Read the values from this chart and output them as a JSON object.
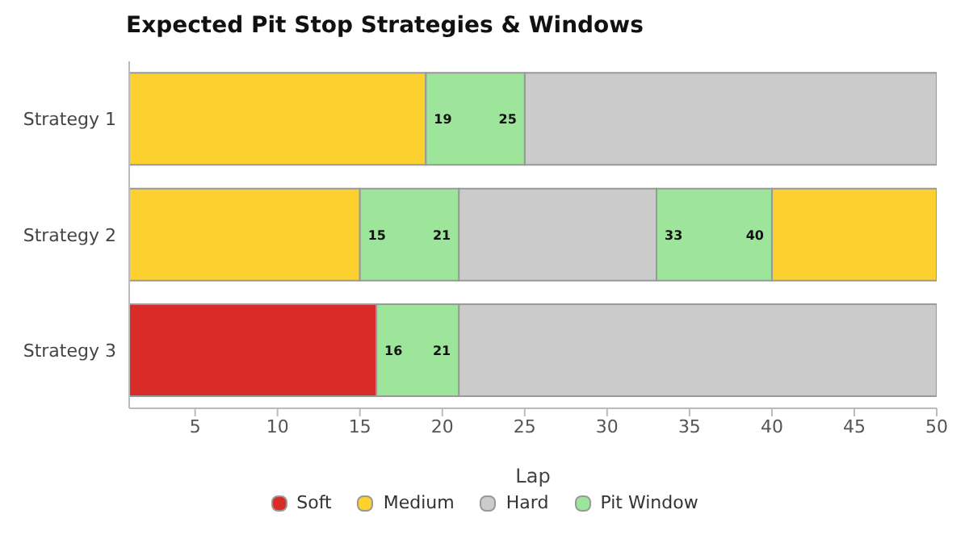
{
  "chart_data": {
    "type": "bar",
    "orientation": "horizontal",
    "title": "Expected Pit Stop Strategies & Windows",
    "xlabel": "Lap",
    "categories": [
      "Strategy 1",
      "Strategy 2",
      "Strategy 3"
    ],
    "series": [
      {
        "name": "Soft",
        "color": "#d92b27",
        "base": [
          null,
          null,
          1
        ],
        "values": [
          null,
          null,
          15
        ]
      },
      {
        "name": "Medium",
        "color": "#fcd02e",
        "base": [
          1,
          1,
          null
        ],
        "values": [
          18,
          14,
          null
        ]
      },
      {
        "color": "#fcd02e",
        "base": [
          null,
          40,
          null
        ],
        "values": [
          null,
          10,
          null
        ]
      },
      {
        "name": "Hard",
        "color": "#cbcbcb",
        "base": [
          25,
          21,
          21
        ],
        "values": [
          25,
          12,
          29
        ]
      },
      {
        "name": "Pit Window",
        "color": "#9de59a",
        "base": [
          19,
          15,
          16
        ],
        "values": [
          6,
          6,
          5
        ]
      },
      {
        "color": "#9de59a",
        "base": [
          null,
          33,
          null
        ],
        "values": [
          null,
          7,
          null
        ]
      }
    ],
    "xlim": [
      1,
      50
    ],
    "xticks": [
      5,
      10,
      15,
      20,
      25,
      30,
      35,
      40,
      45,
      50
    ],
    "legend": "bottom",
    "grid": false,
    "annotations": [
      {
        "text": "19",
        "x": 19,
        "y": "Strategy 1"
      },
      {
        "text": "25",
        "x": 25,
        "y": "Strategy 1"
      },
      {
        "text": "15",
        "x": 15,
        "y": "Strategy 2"
      },
      {
        "text": "21",
        "x": 21,
        "y": "Strategy 2"
      },
      {
        "text": "33",
        "x": 33,
        "y": "Strategy 2"
      },
      {
        "text": "40",
        "x": 40,
        "y": "Strategy 2"
      },
      {
        "text": "16",
        "x": 16,
        "y": "Strategy 3"
      },
      {
        "text": "21",
        "x": 21,
        "y": "Strategy 3"
      }
    ]
  }
}
